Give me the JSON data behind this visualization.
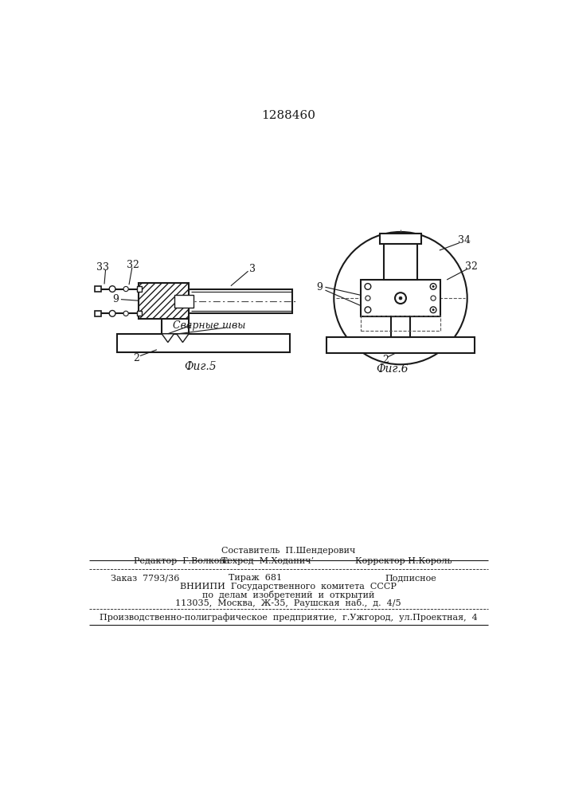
{
  "title": "1288460",
  "bg_color": "#ffffff",
  "line_color": "#1a1a1a",
  "fig5_label": "Фиг.5",
  "fig6_label": "Фиг.6",
  "weld_label": "Сварные швы",
  "footer": {
    "line1": "Составитель  П.Шендерович",
    "line2_left": "Редактор  Г.Волкова",
    "line2_mid": "Техред  М.Хoданич’",
    "line2_right": "Корректор Н.Король",
    "line3_left": "Заказ  7793/36",
    "line3_mid": "Тираж  681",
    "line3_right": "Подписное",
    "line4": "ВНИИПИ  Государственного  комитета  СССР",
    "line5": "по  делам  изобретений  и  открытий",
    "line6": "113035,  Москва,  Ж-35,  Раушская  наб.,  д.  4/5",
    "line7": "Производственно-полиграфическое  предприятие,  г.Ужгород,  ул.Проектная,  4"
  }
}
